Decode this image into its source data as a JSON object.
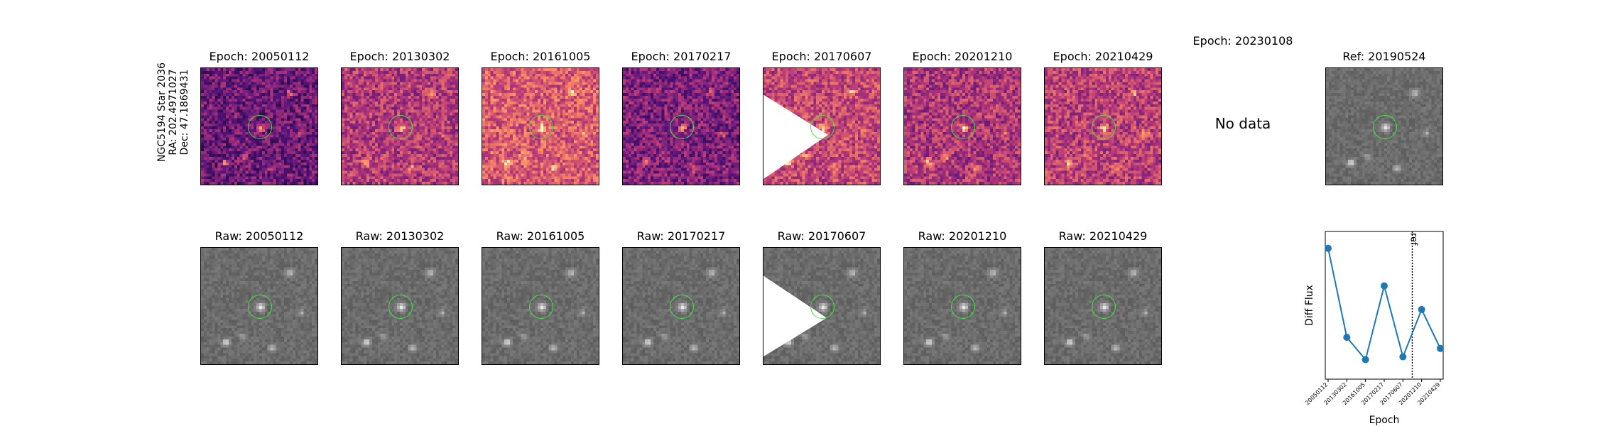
{
  "star_label": {
    "line1": "NGC5194 Star 2036",
    "line2": "RA: 202.4971027",
    "line3": "Dec: 47.1869431"
  },
  "diff_row": [
    {
      "title": "Epoch: 20050112",
      "has_data": true
    },
    {
      "title": "Epoch: 20130302",
      "has_data": true
    },
    {
      "title": "Epoch: 20161005",
      "has_data": true
    },
    {
      "title": "Epoch: 20170217",
      "has_data": true
    },
    {
      "title": "Epoch: 20170607",
      "has_data": true
    },
    {
      "title": "Epoch: 20201210",
      "has_data": true
    },
    {
      "title": "Epoch: 20210429",
      "has_data": true
    },
    {
      "title": "Epoch: 20230108",
      "has_data": false
    }
  ],
  "no_data_text": "No data",
  "ref_panel": {
    "title": "Ref: 20190524"
  },
  "raw_row": [
    {
      "title": "Raw: 20050112"
    },
    {
      "title": "Raw: 20130302"
    },
    {
      "title": "Raw: 20161005"
    },
    {
      "title": "Raw: 20170217"
    },
    {
      "title": "Raw: 20170607"
    },
    {
      "title": "Raw: 20201210"
    },
    {
      "title": "Raw: 20210429"
    }
  ],
  "colors": {
    "ring": "#3ee63e",
    "line": "#1f77b4"
  },
  "chart_data": {
    "type": "line",
    "xlabel": "Epoch",
    "ylabel": "Diff Flux",
    "categories": [
      "20050112",
      "20130302",
      "20161005",
      "20170217",
      "20170607",
      "20201210",
      "20210429"
    ],
    "series": [
      {
        "values": [
          0.92,
          0.28,
          0.12,
          0.65,
          0.14,
          0.48,
          0.2
        ]
      }
    ],
    "ref_marker": {
      "label": "ref",
      "position_between": [
        "20170607",
        "20201210"
      ]
    },
    "y_ticks_shown": false,
    "grid": false
  }
}
